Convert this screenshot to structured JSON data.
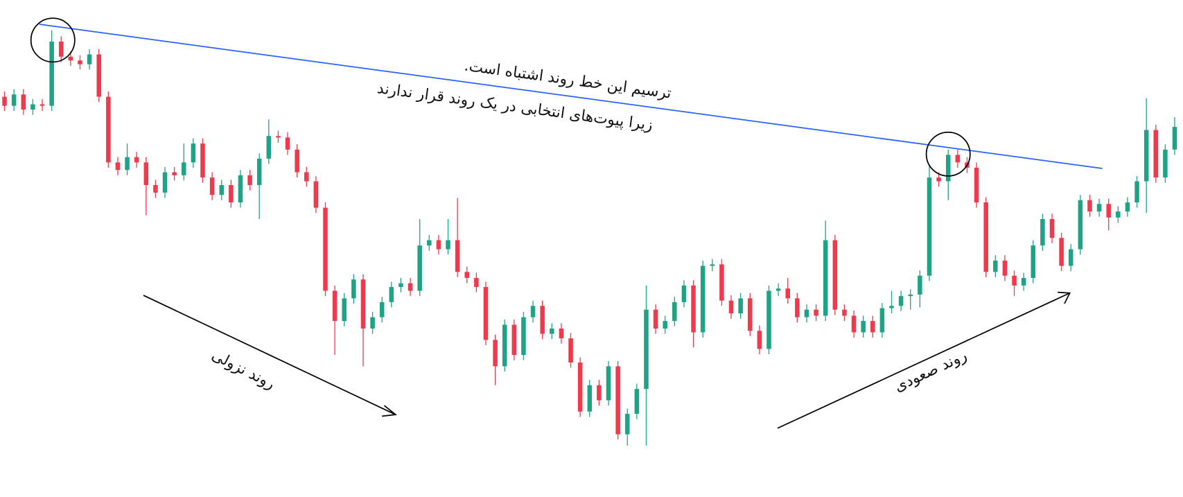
{
  "chart_data": {
    "type": "candlestick",
    "up_color": "#1fa387",
    "down_color": "#f0394d",
    "ylim": [
      0,
      650
    ],
    "annotations": [
      "ترسیم این خط روند اشتباه است.",
      "زیرا پیوت‌های انتخابی در یک روند قرار ندارند",
      "روند نزولی",
      "روند صعودی"
    ],
    "open": [
      522,
      510,
      525,
      505,
      512,
      510,
      595,
      575,
      570,
      565,
      578,
      522,
      435,
      425,
      442,
      435,
      405,
      395,
      422,
      418,
      435,
      460,
      415,
      392,
      405,
      382,
      418,
      405,
      440,
      470,
      468,
      452,
      422,
      410,
      375,
      265,
      225,
      255,
      280,
      215,
      230,
      250,
      270,
      275,
      265,
      325,
      332,
      320,
      332,
      290,
      282,
      270,
      200,
      165,
      220,
      180,
      230,
      245,
      208,
      215,
      202,
      170,
      105,
      140,
      120,
      165,
      75,
      102,
      135,
      240,
      215,
      225,
      250,
      272,
      210,
      298,
      300,
      252,
      235,
      255,
      212,
      188,
      265,
      268,
      255,
      230,
      240,
      232,
      332,
      240,
      232,
      210,
      225,
      210,
      242,
      245,
      258,
      260,
      285,
      415,
      410,
      445,
      435,
      428,
      382,
      290,
      305,
      285,
      272,
      282,
      325,
      360,
      335,
      298,
      320,
      385,
      370,
      380,
      362,
      370,
      382,
      410,
      478,
      415,
      452
    ],
    "high": [
      529,
      532,
      532,
      519,
      519,
      610,
      602,
      582,
      577,
      585,
      585,
      529,
      442,
      460,
      449,
      442,
      412,
      429,
      429,
      460,
      467,
      467,
      422,
      412,
      412,
      425,
      425,
      447,
      492,
      477,
      475,
      459,
      429,
      417,
      382,
      272,
      262,
      287,
      287,
      237,
      257,
      277,
      282,
      282,
      360,
      339,
      339,
      360,
      388,
      297,
      289,
      277,
      207,
      227,
      227,
      237,
      252,
      252,
      222,
      222,
      209,
      177,
      147,
      147,
      172,
      172,
      109,
      142,
      272,
      247,
      232,
      257,
      279,
      279,
      305,
      307,
      307,
      259,
      262,
      262,
      219,
      272,
      275,
      282,
      262,
      247,
      247,
      358,
      339,
      247,
      239,
      232,
      232,
      249,
      265,
      265,
      267,
      292,
      432,
      422,
      452,
      452,
      442,
      435,
      389,
      312,
      312,
      292,
      289,
      332,
      367,
      367,
      342,
      327,
      392,
      392,
      387,
      387,
      377,
      389,
      417,
      520,
      485,
      459,
      495
    ],
    "low": [
      503,
      503,
      498,
      498,
      503,
      503,
      568,
      563,
      558,
      558,
      515,
      428,
      418,
      418,
      428,
      365,
      388,
      388,
      411,
      411,
      428,
      408,
      385,
      385,
      375,
      375,
      398,
      360,
      433,
      461,
      445,
      415,
      403,
      368,
      258,
      180,
      218,
      248,
      165,
      208,
      223,
      243,
      263,
      258,
      258,
      318,
      313,
      313,
      283,
      275,
      263,
      193,
      140,
      158,
      173,
      173,
      223,
      201,
      201,
      195,
      163,
      98,
      98,
      113,
      113,
      68,
      60,
      95,
      60,
      208,
      208,
      218,
      243,
      190,
      203,
      291,
      245,
      228,
      228,
      205,
      181,
      181,
      258,
      248,
      223,
      223,
      225,
      225,
      233,
      225,
      203,
      203,
      203,
      203,
      235,
      238,
      240,
      243,
      278,
      403,
      385,
      428,
      421,
      375,
      283,
      283,
      278,
      258,
      265,
      275,
      318,
      328,
      291,
      291,
      313,
      363,
      363,
      345,
      355,
      363,
      375,
      368,
      408,
      408,
      445
    ],
    "close": [
      510,
      525,
      505,
      512,
      510,
      595,
      575,
      570,
      565,
      578,
      522,
      435,
      425,
      442,
      435,
      405,
      395,
      422,
      418,
      435,
      460,
      415,
      392,
      405,
      382,
      418,
      405,
      440,
      470,
      468,
      452,
      422,
      410,
      375,
      265,
      225,
      255,
      280,
      215,
      230,
      250,
      270,
      275,
      265,
      325,
      332,
      320,
      332,
      290,
      282,
      270,
      200,
      165,
      220,
      180,
      230,
      245,
      208,
      215,
      202,
      170,
      105,
      140,
      120,
      165,
      75,
      102,
      135,
      240,
      215,
      225,
      250,
      272,
      210,
      298,
      300,
      252,
      235,
      255,
      212,
      188,
      265,
      268,
      255,
      230,
      240,
      232,
      332,
      240,
      232,
      210,
      225,
      210,
      242,
      245,
      258,
      260,
      285,
      415,
      410,
      445,
      435,
      428,
      382,
      290,
      305,
      285,
      272,
      282,
      325,
      360,
      335,
      298,
      320,
      385,
      370,
      380,
      362,
      370,
      382,
      410,
      478,
      415,
      452,
      482
    ]
  }
}
